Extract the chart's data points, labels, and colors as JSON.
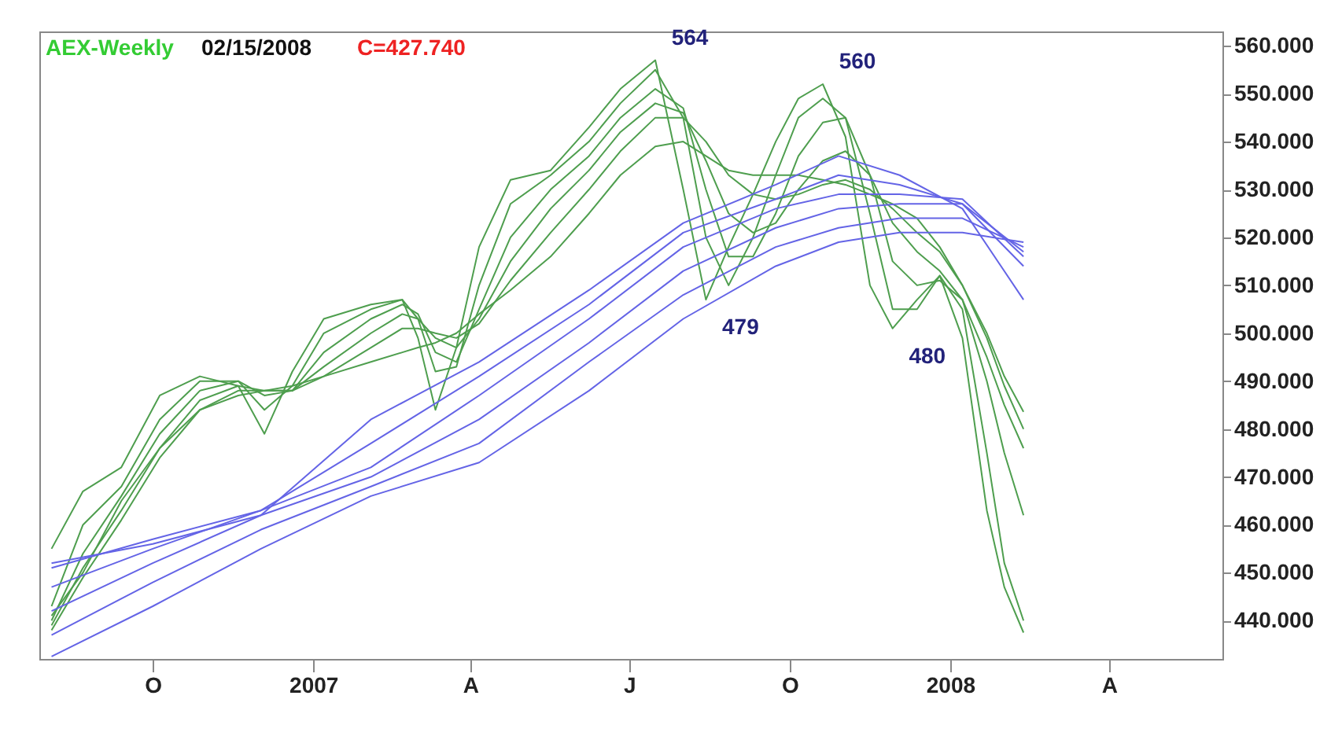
{
  "chart_data": {
    "type": "line",
    "title": "AEX-Weekly",
    "annotations": [
      "02/15/2008",
      "C=427.740",
      {
        "text": "564",
        "x": "2007-07-16",
        "y": 557
      },
      {
        "text": "479",
        "x": "2007-08-14",
        "y": 507
      },
      {
        "text": "560",
        "x": "2007-10-20",
        "y": 552
      },
      {
        "text": "480",
        "x": "2007-11-29",
        "y": 501
      }
    ],
    "x": [
      "2006-08-04",
      "2006-08-22",
      "2006-09-13",
      "2006-10-05",
      "2006-10-28",
      "2006-11-19",
      "2006-12-04",
      "2006-12-20",
      "2007-01-07",
      "2007-02-03",
      "2007-02-21",
      "2007-03-02",
      "2007-03-12",
      "2007-03-24",
      "2007-04-06",
      "2007-04-24",
      "2007-05-17",
      "2007-06-08",
      "2007-06-26",
      "2007-07-16",
      "2007-08-01",
      "2007-08-14",
      "2007-08-27",
      "2007-09-10",
      "2007-09-23",
      "2007-10-06",
      "2007-10-20",
      "2007-11-02",
      "2007-11-16",
      "2007-11-29",
      "2007-12-13",
      "2007-12-26",
      "2008-01-08",
      "2008-01-22",
      "2008-02-01",
      "2008-02-12"
    ],
    "series": [
      {
        "color": "#4e9e4e",
        "values": [
          455,
          467,
          472,
          487,
          491,
          489,
          479,
          492,
          503,
          506,
          507,
          499,
          484,
          497,
          518,
          532,
          534,
          543,
          551,
          557,
          530,
          507,
          518,
          529,
          540,
          549,
          552,
          541,
          510,
          501,
          507,
          512,
          499,
          463,
          447,
          437.5
        ]
      },
      {
        "color": "#4e9e4e",
        "values": [
          443,
          460,
          468,
          482,
          490,
          490,
          484,
          489,
          500,
          505,
          507,
          503,
          492,
          493,
          510,
          527,
          533,
          540,
          548,
          555,
          545,
          520,
          510,
          520,
          533,
          545,
          549,
          545,
          525,
          505,
          505,
          512,
          505,
          475,
          452,
          440
        ]
      },
      {
        "color": "#4e9e4e",
        "values": [
          440,
          454,
          466,
          479,
          488,
          490,
          487,
          488,
          496,
          503,
          506,
          504,
          496,
          494,
          505,
          520,
          530,
          537,
          545,
          551,
          547,
          530,
          516,
          516,
          525,
          537,
          544,
          545,
          533,
          515,
          510,
          511,
          507,
          490,
          475,
          462
        ]
      },
      {
        "color": "#4e9e4e",
        "values": [
          439,
          451,
          463,
          476,
          486,
          489,
          488,
          488,
          493,
          500,
          504,
          503,
          499,
          497,
          503,
          515,
          526,
          534,
          542,
          548,
          546,
          536,
          525,
          521,
          523,
          530,
          536,
          538,
          533,
          523,
          517,
          513,
          507,
          495,
          485,
          476
        ]
      },
      {
        "color": "#4e9e4e",
        "values": [
          438,
          449,
          461,
          474,
          484,
          488,
          488,
          488,
          491,
          497,
          501,
          501,
          500,
          499,
          502,
          511,
          521,
          530,
          538,
          545,
          545,
          540,
          533,
          529,
          528,
          529,
          531,
          532,
          530,
          526,
          521,
          517,
          510,
          499,
          489,
          480
        ]
      },
      {
        "color": "#4e9e4e",
        "values": [
          441,
          450,
          465,
          476,
          484,
          487,
          488,
          489,
          491,
          494,
          496,
          497,
          498,
          500,
          504,
          509,
          516,
          525,
          533,
          539,
          540,
          537,
          534,
          533,
          533,
          533,
          532,
          531,
          529,
          527,
          524,
          518,
          510,
          500,
          491,
          483.6
        ]
      },
      {
        "color": "#6464e6",
        "x": [
          "2006-08-04",
          "2006-10-01",
          "2006-12-02",
          "2007-02-03",
          "2007-04-06",
          "2007-06-08",
          "2007-08-01",
          "2007-09-23",
          "2007-10-29",
          "2007-12-03",
          "2008-01-08",
          "2008-02-12"
        ],
        "values": [
          452,
          456,
          462,
          482,
          494,
          509,
          523,
          531,
          537,
          533,
          526,
          507
        ]
      },
      {
        "color": "#6464e6",
        "x": [
          "2006-08-04",
          "2006-10-01",
          "2006-12-02",
          "2007-02-03",
          "2007-04-06",
          "2007-06-08",
          "2007-08-01",
          "2007-09-23",
          "2007-10-29",
          "2007-12-03",
          "2008-01-08",
          "2008-02-12"
        ],
        "values": [
          451,
          457,
          463,
          477,
          491,
          506,
          521,
          528,
          533,
          531,
          527,
          514
        ]
      },
      {
        "color": "#6464e6",
        "x": [
          "2006-08-04",
          "2006-10-01",
          "2006-12-02",
          "2007-02-03",
          "2007-04-06",
          "2007-06-08",
          "2007-08-01",
          "2007-09-23",
          "2007-10-29",
          "2007-12-03",
          "2008-01-08",
          "2008-02-12"
        ],
        "values": [
          447,
          455,
          463,
          472,
          487,
          503,
          518,
          526,
          529,
          529,
          528,
          516
        ]
      },
      {
        "color": "#6464e6",
        "x": [
          "2006-08-04",
          "2006-10-01",
          "2006-12-02",
          "2007-02-03",
          "2007-04-06",
          "2007-06-08",
          "2007-08-01",
          "2007-09-23",
          "2007-10-29",
          "2007-12-03",
          "2008-01-08",
          "2008-02-12"
        ],
        "values": [
          442,
          452,
          462,
          470,
          482,
          498,
          513,
          522,
          526,
          527,
          527,
          517
        ]
      },
      {
        "color": "#6464e6",
        "x": [
          "2006-08-04",
          "2006-10-01",
          "2006-12-02",
          "2007-02-03",
          "2007-04-06",
          "2007-06-08",
          "2007-08-01",
          "2007-09-23",
          "2007-10-29",
          "2007-12-03",
          "2008-01-08",
          "2008-02-12"
        ],
        "values": [
          437,
          448,
          459,
          468,
          477,
          494,
          508,
          518,
          522,
          524,
          524,
          518
        ]
      },
      {
        "color": "#6464e6",
        "x": [
          "2006-08-04",
          "2006-10-01",
          "2006-12-02",
          "2007-02-03",
          "2007-04-06",
          "2007-06-08",
          "2007-08-01",
          "2007-09-23",
          "2007-10-29",
          "2007-12-03",
          "2008-01-08",
          "2008-02-12"
        ],
        "values": [
          432.5,
          443,
          455,
          466,
          473,
          488,
          503,
          514,
          519,
          521,
          521,
          519
        ]
      }
    ],
    "xlim": [
      "2006-07-28",
      "2008-06-05"
    ],
    "xticks": [
      {
        "value": "2006-10-01",
        "label": "O"
      },
      {
        "value": "2007-01-01",
        "label": "2007"
      },
      {
        "value": "2007-04-01",
        "label": "A"
      },
      {
        "value": "2007-07-01",
        "label": "J"
      },
      {
        "value": "2007-10-01",
        "label": "O"
      },
      {
        "value": "2008-01-01",
        "label": "2008"
      },
      {
        "value": "2008-04-01",
        "label": "A"
      }
    ],
    "ylim": [
      432,
      563
    ],
    "yticks": [
      {
        "value": 440,
        "label": "440.000"
      },
      {
        "value": 450,
        "label": "450.000"
      },
      {
        "value": 460,
        "label": "460.000"
      },
      {
        "value": 470,
        "label": "470.000"
      },
      {
        "value": 480,
        "label": "480.000"
      },
      {
        "value": 490,
        "label": "490.000"
      },
      {
        "value": 500,
        "label": "500.000"
      },
      {
        "value": 510,
        "label": "510.000"
      },
      {
        "value": 520,
        "label": "520.000"
      },
      {
        "value": 530,
        "label": "530.000"
      },
      {
        "value": 540,
        "label": "540.000"
      },
      {
        "value": 550,
        "label": "550.000"
      },
      {
        "value": 560,
        "label": "560.000"
      }
    ],
    "grid": false,
    "legend": false,
    "marker": "none",
    "line_style": "solid"
  }
}
